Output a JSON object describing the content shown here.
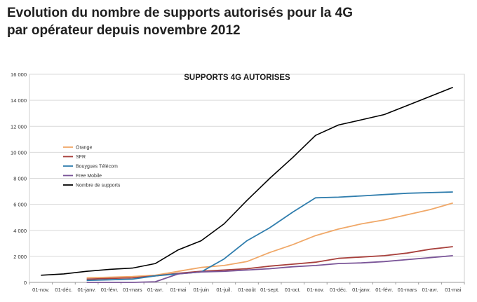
{
  "headline": {
    "line1": "Evolution du nombre de supports autorisés pour la 4G",
    "line2": "par opérateur depuis novembre 2012"
  },
  "chart_data": {
    "type": "line",
    "title": "SUPPORTS 4G AUTORISES",
    "xlabel": "",
    "ylabel": "",
    "ylim": [
      0,
      16000
    ],
    "yticks": [
      "0",
      "2 000",
      "4 000",
      "6 000",
      "8 000",
      "10 000",
      "12 000",
      "14 000",
      "16 000"
    ],
    "ytick_values": [
      0,
      2000,
      4000,
      6000,
      8000,
      10000,
      12000,
      14000,
      16000
    ],
    "grid": true,
    "legend_position": "left",
    "categories": [
      "01-nov.",
      "01-déc.",
      "01-janv.",
      "01-févr.",
      "01-mars",
      "01-avr.",
      "01-mai",
      "01-juin",
      "01-juil.",
      "01-août",
      "01-sept.",
      "01-oct.",
      "01-nov.",
      "01-déc.",
      "01-janv.",
      "01-févr.",
      "01-mars",
      "01-avr.",
      "01-mai"
    ],
    "series": [
      {
        "name": "Orange",
        "color": "#f0a868",
        "values": [
          null,
          null,
          350,
          400,
          450,
          550,
          850,
          1150,
          1300,
          1600,
          2300,
          2900,
          3600,
          4100,
          4500,
          4800,
          5200,
          5600,
          6100
        ]
      },
      {
        "name": "SFR",
        "color": "#a8403c",
        "values": [
          null,
          null,
          250,
          300,
          350,
          500,
          700,
          850,
          950,
          1050,
          1250,
          1400,
          1550,
          1850,
          1950,
          2050,
          2250,
          2550,
          2750
        ]
      },
      {
        "name": "Bouygues Télécom",
        "color": "#2f7dad",
        "values": [
          null,
          null,
          150,
          200,
          250,
          500,
          650,
          800,
          1800,
          3200,
          4200,
          5400,
          6500,
          6550,
          6650,
          6750,
          6850,
          6900,
          6950
        ]
      },
      {
        "name": "Free Mobile",
        "color": "#7a5598",
        "values": [
          null,
          null,
          0,
          0,
          0,
          50,
          650,
          800,
          850,
          950,
          1050,
          1200,
          1300,
          1450,
          1500,
          1600,
          1750,
          1900,
          2050
        ]
      },
      {
        "name": "Nombre de supports",
        "color": "#000000",
        "values": [
          550,
          650,
          850,
          1000,
          1100,
          1450,
          2500,
          3200,
          4500,
          6300,
          8000,
          9600,
          11300,
          12100,
          12500,
          12900,
          13600,
          14300,
          15000
        ]
      }
    ]
  }
}
